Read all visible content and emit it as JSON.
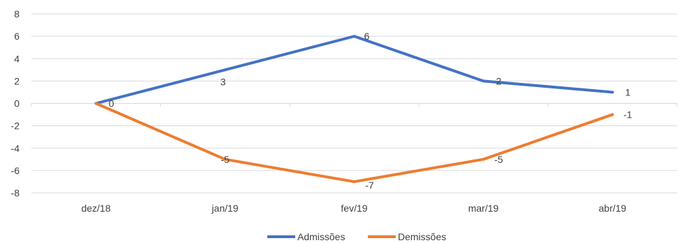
{
  "chart_data": {
    "type": "line",
    "categories": [
      "dez/18",
      "jan/19",
      "fev/19",
      "mar/19",
      "abr/19"
    ],
    "series": [
      {
        "name": "Admissões",
        "values": [
          0,
          3,
          6,
          2,
          1
        ],
        "color": "#4472C4"
      },
      {
        "name": "Demissões",
        "values": [
          0,
          -5,
          -7,
          -5,
          -1
        ],
        "color": "#ED7D31"
      }
    ],
    "y_ticks": [
      "8",
      "6",
      "4",
      "2",
      "0",
      "-2",
      "-4",
      "-6",
      "-8"
    ],
    "ylim": [
      -8,
      8
    ],
    "grid": true,
    "legend_position": "bottom",
    "data_labels": {
      "Admissões": [
        "0",
        "3",
        "6",
        "2",
        "1"
      ],
      "Demissões": [
        "",
        "-5",
        "-7",
        "-5",
        "-1"
      ]
    }
  }
}
